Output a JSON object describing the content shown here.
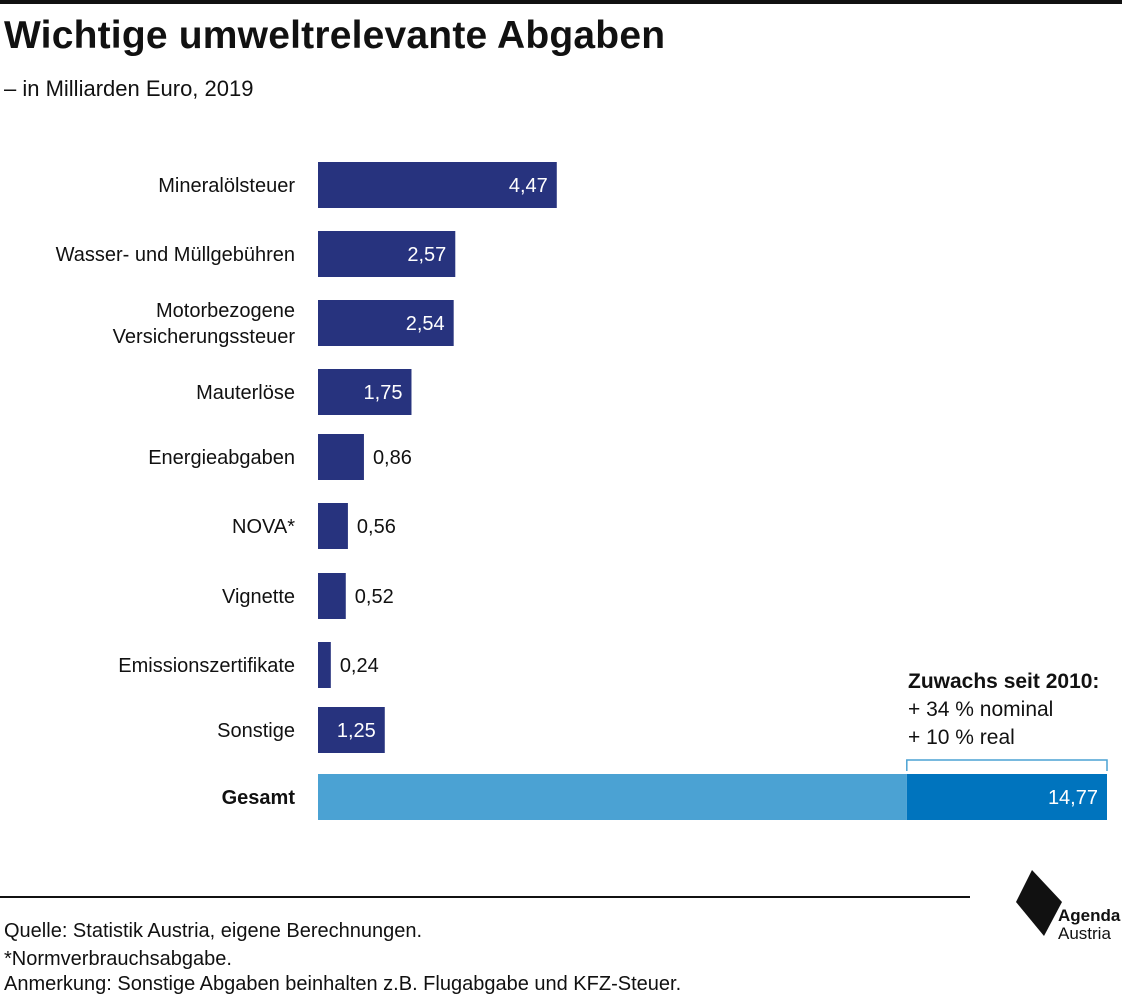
{
  "header": {
    "title": "Wichtige umweltrelevante Abgaben",
    "subtitle": "– in Milliarden Euro, 2019"
  },
  "chart_data": {
    "type": "bar",
    "orientation": "horizontal",
    "title": "Wichtige umweltrelevante Abgaben",
    "subtitle": "– in Milliarden Euro, 2019",
    "categories": [
      "Mineralölsteuer",
      "Wasser- und Müllgebühren",
      "Motorbezogene Versicherungssteuer",
      "Mauterlöse",
      "Energieabgaben",
      "NOVA*",
      "Vignette",
      "Emissionszertifikate",
      "Sonstige",
      "Gesamt"
    ],
    "category_lines": [
      [
        "Mineralölsteuer"
      ],
      [
        "Wasser- und Müllgebühren"
      ],
      [
        "Motorbezogene",
        "Versicherungssteuer"
      ],
      [
        "Mauterlöse"
      ],
      [
        "Energieabgaben"
      ],
      [
        "NOVA*"
      ],
      [
        "Vignette"
      ],
      [
        "Emissionszertifikate"
      ],
      [
        "Sonstige"
      ],
      [
        "Gesamt"
      ]
    ],
    "values": [
      4.47,
      2.57,
      2.54,
      1.75,
      0.86,
      0.56,
      0.52,
      0.24,
      1.25,
      14.77
    ],
    "value_labels": [
      "4,47",
      "2,57",
      "2,54",
      "1,75",
      "0,86",
      "0,56",
      "0,52",
      "0,24",
      "1,25",
      "14,77"
    ],
    "total_growth_share_nominal": 0.34,
    "xlim": [
      0,
      14.77
    ],
    "grid": false,
    "colors": {
      "bar": "#27337e",
      "total_base": "#4ba2d3",
      "total_growth": "#0074be",
      "bracket": "#4ba2d3"
    }
  },
  "annotation": {
    "title": "Zuwachs seit 2010:",
    "line1": "+ 34 % nominal",
    "line2": "+ 10 % real"
  },
  "footer": {
    "source": "Quelle: Statistik Austria, eigene Berechnungen.",
    "note1": "*Normverbrauchsabgabe.",
    "note2": "Anmerkung: Sonstige Abgaben beinhalten z.B. Flugabgabe und KFZ-Steuer."
  },
  "logo": {
    "line1": "Agenda",
    "line2": "Austria",
    "icon": "agenda-austria-logo-icon"
  }
}
